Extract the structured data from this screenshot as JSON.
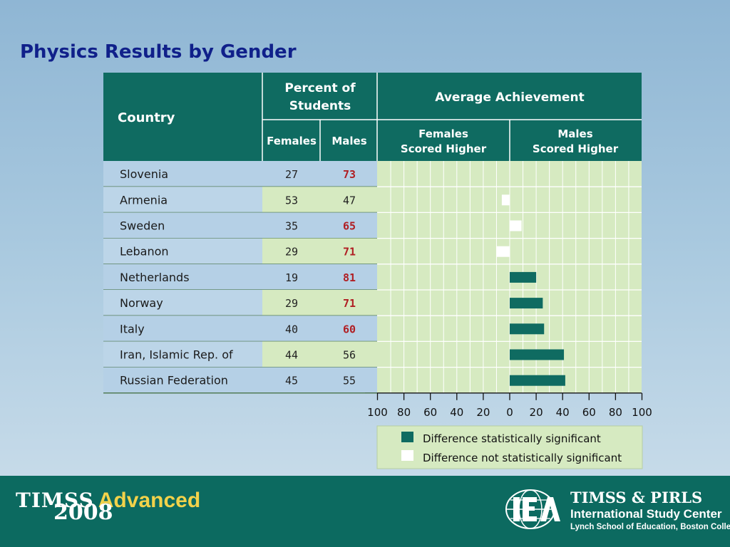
{
  "title": "Physics Results by Gender",
  "header": {
    "country": "Country",
    "percent_line1": "Percent of",
    "percent_line2": "Students",
    "females": "Females",
    "males": "Males",
    "avg": "Average Achievement",
    "females_higher_1": "Females",
    "females_higher_2": "Scored Higher",
    "males_higher_1": "Males",
    "males_higher_2": "Scored Higher"
  },
  "chart_data": {
    "type": "bar",
    "categories": [
      "Slovenia",
      "Armenia",
      "Sweden",
      "Lebanon",
      "Netherlands",
      "Norway",
      "Italy",
      "Iran, Islamic Rep. of",
      "Russian Federation"
    ],
    "percent_females": [
      27,
      53,
      35,
      29,
      19,
      29,
      40,
      44,
      45
    ],
    "percent_males": [
      73,
      47,
      65,
      71,
      81,
      71,
      60,
      56,
      55
    ],
    "males_percent_bold": [
      true,
      false,
      true,
      true,
      true,
      true,
      true,
      false,
      false
    ],
    "difference": [
      0,
      -6,
      9,
      -10,
      20,
      25,
      26,
      41,
      42
    ],
    "significant": [
      true,
      false,
      false,
      false,
      true,
      true,
      true,
      true,
      true
    ],
    "xticks": [
      "100",
      "80",
      "60",
      "40",
      "20",
      "0",
      "20",
      "40",
      "60",
      "80",
      "100"
    ],
    "xlim": [
      -100,
      100
    ],
    "legend": {
      "significant": "Difference statistically significant",
      "not_significant": "Difference not statistically significant"
    },
    "colors": {
      "significant": "#0f6b61",
      "not_significant": "#ffffff",
      "plot_bg": "#d6eac1",
      "header": "#0f6b61",
      "sig_value": "#b01f24"
    }
  },
  "footer": {
    "brand_name": "TIMSS",
    "brand_suffix": "Advanced",
    "brand_year": "2008",
    "center_name": "TIMSS & PIRLS",
    "center_subtitle": "International Study Center",
    "center_affiliation": "Lynch School of Education, Boston College",
    "logo_name": "IEA"
  }
}
